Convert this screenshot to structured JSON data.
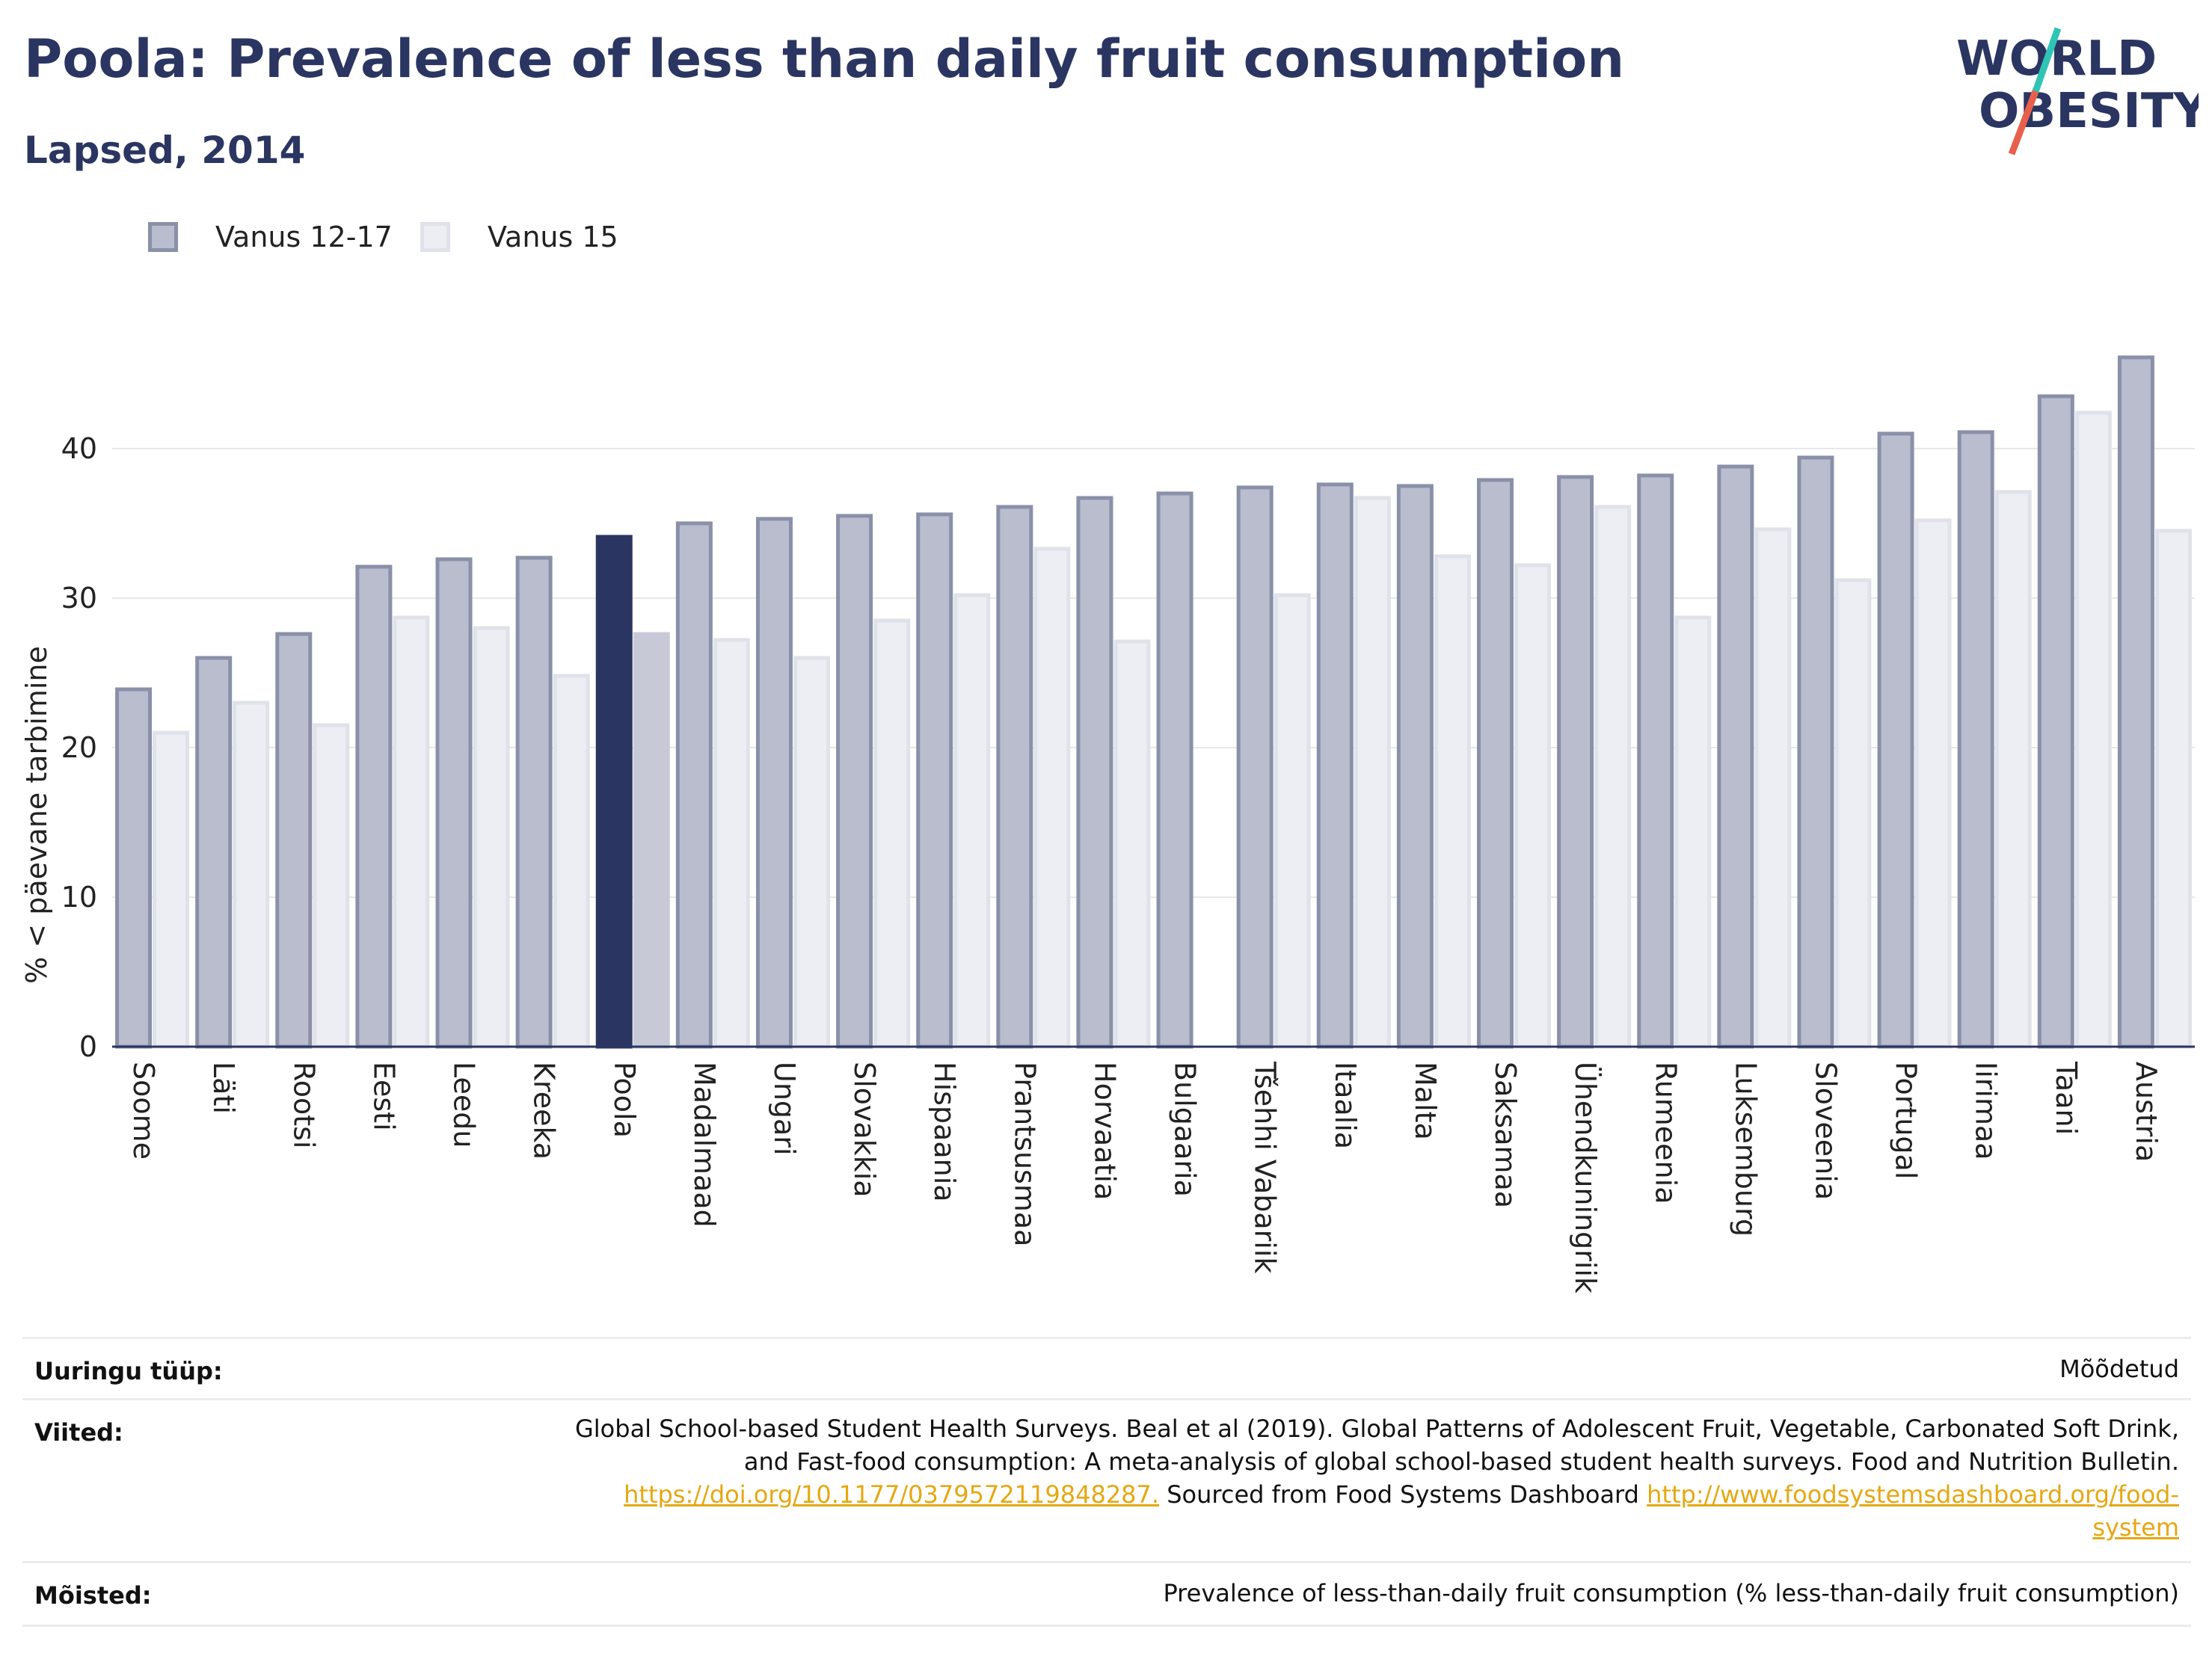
{
  "header": {
    "title": "Poola: Prevalence of less than daily fruit consumption",
    "subtitle": "Lapsed, 2014"
  },
  "logo": {
    "line1": "WORLD",
    "line2": "OBESITY",
    "colors": {
      "text": "#2b3561",
      "slash_top": "#2ec4b6",
      "slash_bottom": "#e8604c"
    }
  },
  "legend": {
    "placement": "top-left",
    "items": [
      {
        "label": "Vanus 12-17",
        "fill": "#b9bdce",
        "border": "#8a90a8"
      },
      {
        "label": "Vanus 15",
        "fill": "#eceef3",
        "border": "#e0e2ea"
      }
    ]
  },
  "chart_data": {
    "type": "bar",
    "title": "Poola: Prevalence of less than daily fruit consumption",
    "subtitle": "Lapsed, 2014",
    "xlabel": "",
    "ylabel": "% < päevane tarbimine",
    "ylim": [
      0,
      48
    ],
    "yticks": [
      0,
      10,
      20,
      30,
      40
    ],
    "grid": true,
    "highlight_category": "Poola",
    "highlight_colors": {
      "Vanus 12-17": "#2b3561",
      "Vanus 15": "#c7cad6"
    },
    "categories": [
      "Soome",
      "Läti",
      "Rootsi",
      "Eesti",
      "Leedu",
      "Kreeka",
      "Poola",
      "Madalmaad",
      "Ungari",
      "Slovakkia",
      "Hispaania",
      "Prantsusmaa",
      "Horvaatia",
      "Bulgaaria",
      "Tšehhi Vabariik",
      "Itaalia",
      "Malta",
      "Saksamaa",
      "Ühendkuningriik",
      "Rumeenia",
      "Luksemburg",
      "Sloveenia",
      "Portugal",
      "Iirimaa",
      "Taani",
      "Austria"
    ],
    "series": [
      {
        "name": "Vanus 12-17",
        "values": [
          23.9,
          26.0,
          27.6,
          32.1,
          32.6,
          32.7,
          34.1,
          35.0,
          35.3,
          35.5,
          35.6,
          36.1,
          36.7,
          37.0,
          37.4,
          37.6,
          37.5,
          37.9,
          38.1,
          38.2,
          38.8,
          39.4,
          41.0,
          41.1,
          43.5,
          46.1
        ]
      },
      {
        "name": "Vanus 15",
        "values": [
          21.0,
          23.0,
          21.5,
          28.7,
          28.0,
          24.8,
          27.6,
          27.2,
          26.0,
          28.5,
          30.2,
          33.3,
          27.1,
          null,
          30.2,
          36.7,
          32.8,
          32.2,
          36.1,
          28.7,
          34.6,
          31.2,
          35.2,
          37.1,
          42.4,
          34.5
        ]
      }
    ]
  },
  "info": {
    "rows": [
      {
        "label": "Uuringu tüüp:",
        "value": "Mõõdetud"
      },
      {
        "label": "Viited:",
        "line1": "Global School-based Student Health Surveys. Beal et al (2019). Global Patterns of Adolescent Fruit, Vegetable, Carbonated Soft Drink,",
        "line2": "and Fast-food consumption: A meta-analysis of global school-based student health surveys. Food and Nutrition Bulletin.",
        "link1": "https://doi.org/10.1177/0379572119848287.",
        "mid": " Sourced from Food Systems Dashboard ",
        "link2a": "http://www.foodsystemsdashboard.org/food-",
        "link2b": "system"
      },
      {
        "label": "Mõisted:",
        "value": "Prevalence of less-than-daily fruit consumption (% less-than-daily fruit consumption)"
      }
    ]
  }
}
